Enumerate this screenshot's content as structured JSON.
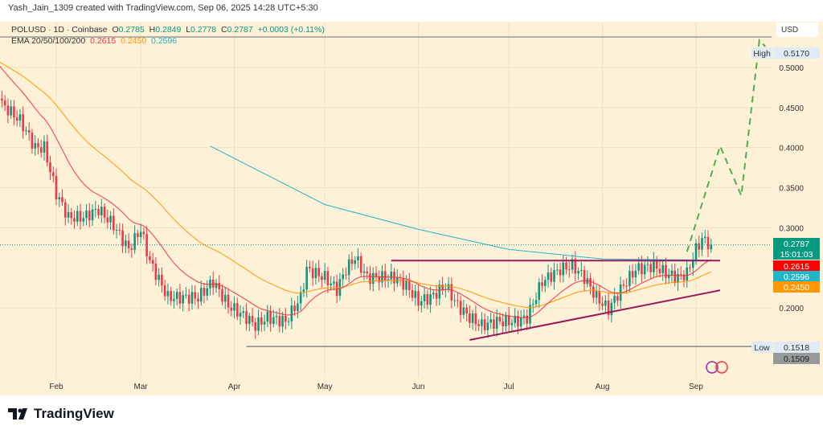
{
  "attribution": "Yash_Jain_1309 created with TradingView.com, Sep 06, 2025 14:28 UTC+5:30",
  "legend": {
    "symbol": "POLUSD · 1D · Coinbase",
    "o_label": "O",
    "o": "0.2785",
    "h_label": "H",
    "h": "0.2849",
    "l_label": "L",
    "l": "0.2778",
    "c_label": "C",
    "c": "0.2787",
    "change": "+0.0003 (+0.11%)",
    "ema_label": "EMA 20/50/100/200",
    "ema20": "0.2615",
    "ema50": "0.2450",
    "ema100": "0.2596"
  },
  "currency": "USD",
  "brand": "TradingView",
  "colors": {
    "up": "#089981",
    "down": "#f23645",
    "ema20": "#f23645",
    "ema50": "#ff9800",
    "ema100": "#22b5c9",
    "trendline": "#9c1a5c",
    "projection": "#4caf50",
    "background": "#fdf1d8"
  },
  "chart_data": {
    "type": "candlestick",
    "title": "POLUSD · 1D · Coinbase",
    "ylim": [
      0.13,
      0.56
    ],
    "y_ticks": [
      "0.5000",
      "0.4500",
      "0.4000",
      "0.3500",
      "0.3000",
      "0.2000"
    ],
    "x_ticks": [
      "Feb",
      "Mar",
      "Apr",
      "May",
      "Jun",
      "Jul",
      "Aug",
      "Sep"
    ],
    "grid": true,
    "closes": [
      [
        "2025-01-11",
        0.5
      ],
      [
        "2025-01-14",
        0.454
      ],
      [
        "2025-01-20",
        0.434
      ],
      [
        "2025-01-25",
        0.4
      ],
      [
        "2025-01-28",
        0.4
      ],
      [
        "2025-02-01",
        0.343
      ],
      [
        "2025-02-05",
        0.313
      ],
      [
        "2025-02-10",
        0.313
      ],
      [
        "2025-02-15",
        0.323
      ],
      [
        "2025-02-20",
        0.303
      ],
      [
        "2025-02-25",
        0.273
      ],
      [
        "2025-03-01",
        0.298
      ],
      [
        "2025-03-04",
        0.258
      ],
      [
        "2025-03-10",
        0.213
      ],
      [
        "2025-03-15",
        0.213
      ],
      [
        "2025-03-20",
        0.213
      ],
      [
        "2025-03-25",
        0.233
      ],
      [
        "2025-03-30",
        0.203
      ],
      [
        "2025-04-05",
        0.188
      ],
      [
        "2025-04-08",
        0.178
      ],
      [
        "2025-04-12",
        0.188
      ],
      [
        "2025-04-18",
        0.183
      ],
      [
        "2025-04-23",
        0.213
      ],
      [
        "2025-04-25",
        0.248
      ],
      [
        "2025-05-01",
        0.238
      ],
      [
        "2025-05-05",
        0.223
      ],
      [
        "2025-05-08",
        0.248
      ],
      [
        "2025-05-11",
        0.263
      ],
      [
        "2025-05-15",
        0.238
      ],
      [
        "2025-05-20",
        0.238
      ],
      [
        "2025-05-24",
        0.238
      ],
      [
        "2025-05-28",
        0.228
      ],
      [
        "2025-06-01",
        0.208
      ],
      [
        "2025-06-05",
        0.213
      ],
      [
        "2025-06-10",
        0.228
      ],
      [
        "2025-06-14",
        0.203
      ],
      [
        "2025-06-18",
        0.188
      ],
      [
        "2025-06-22",
        0.178
      ],
      [
        "2025-06-27",
        0.183
      ],
      [
        "2025-07-03",
        0.183
      ],
      [
        "2025-07-07",
        0.188
      ],
      [
        "2025-07-12",
        0.233
      ],
      [
        "2025-07-18",
        0.248
      ],
      [
        "2025-07-22",
        0.253
      ],
      [
        "2025-07-26",
        0.238
      ],
      [
        "2025-07-30",
        0.213
      ],
      [
        "2025-08-03",
        0.198
      ],
      [
        "2025-08-07",
        0.223
      ],
      [
        "2025-08-12",
        0.248
      ],
      [
        "2025-08-18",
        0.253
      ],
      [
        "2025-08-22",
        0.243
      ],
      [
        "2025-08-26",
        0.238
      ],
      [
        "2025-08-29",
        0.243
      ],
      [
        "2025-09-01",
        0.273
      ],
      [
        "2025-09-03",
        0.286
      ],
      [
        "2025-09-06",
        0.2787
      ]
    ],
    "ema100": [
      [
        "2025-03-24",
        0.402
      ],
      [
        "2025-05-01",
        0.329
      ],
      [
        "2025-06-01",
        0.298
      ],
      [
        "2025-07-01",
        0.273
      ],
      [
        "2025-08-01",
        0.261
      ],
      [
        "2025-09-06",
        0.2596
      ]
    ],
    "resistance_line": [
      [
        "2025-05-23",
        0.259
      ],
      [
        "2025-09-09",
        0.259
      ]
    ],
    "support_trendline": [
      [
        "2025-06-18",
        0.16
      ],
      [
        "2025-09-09",
        0.222
      ]
    ],
    "low_line": [
      [
        "2025-04-05",
        0.1518
      ],
      [
        "2025-09-20",
        0.1518
      ]
    ],
    "projection": [
      [
        "2025-08-29",
        0.27
      ],
      [
        "2025-09-09",
        0.402
      ],
      [
        "2025-09-16",
        0.34
      ],
      [
        "2025-09-22",
        0.534
      ],
      [
        "2025-09-24",
        0.526
      ]
    ],
    "labels": {
      "high_label": "High",
      "high": "0.5170",
      "low_label": "Low",
      "low": "0.1518",
      "low2": "0.1509",
      "last": "0.2787",
      "countdown": "15:01:03",
      "ema20": "0.2615",
      "ema100": "0.2596",
      "ema50": "0.2450"
    }
  }
}
